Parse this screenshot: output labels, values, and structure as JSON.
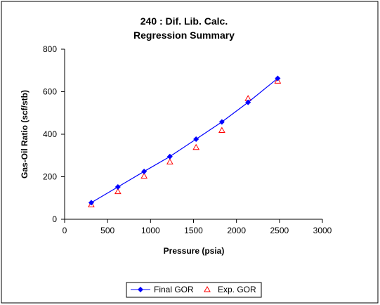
{
  "chart_data": {
    "type": "scatter",
    "title_line1": "240 : Dif. Lib. Calc.",
    "title_line2": "Regression Summary",
    "xlabel": "Pressure (psia)",
    "ylabel": "Gas-Oil Ratio (scf/stb)",
    "xlim": [
      0,
      3000
    ],
    "ylim": [
      0,
      800
    ],
    "xticks": [
      0,
      500,
      1000,
      1500,
      2000,
      2500,
      3000
    ],
    "yticks": [
      0,
      200,
      400,
      600,
      800
    ],
    "grid": false,
    "legend_position": "bottom",
    "series": [
      {
        "name": "Final GOR",
        "kind": "line-diamond",
        "color": "#0000FF",
        "x": [
          310,
          620,
          925,
          1225,
          1530,
          1830,
          2135,
          2480
        ],
        "y": [
          78,
          152,
          225,
          295,
          377,
          458,
          550,
          663
        ]
      },
      {
        "name": "Exp. GOR",
        "kind": "triangle-open",
        "color": "#FF0000",
        "x": [
          310,
          620,
          925,
          1225,
          1530,
          1830,
          2135,
          2480
        ],
        "y": [
          68,
          130,
          203,
          270,
          338,
          418,
          568,
          650
        ]
      }
    ]
  }
}
